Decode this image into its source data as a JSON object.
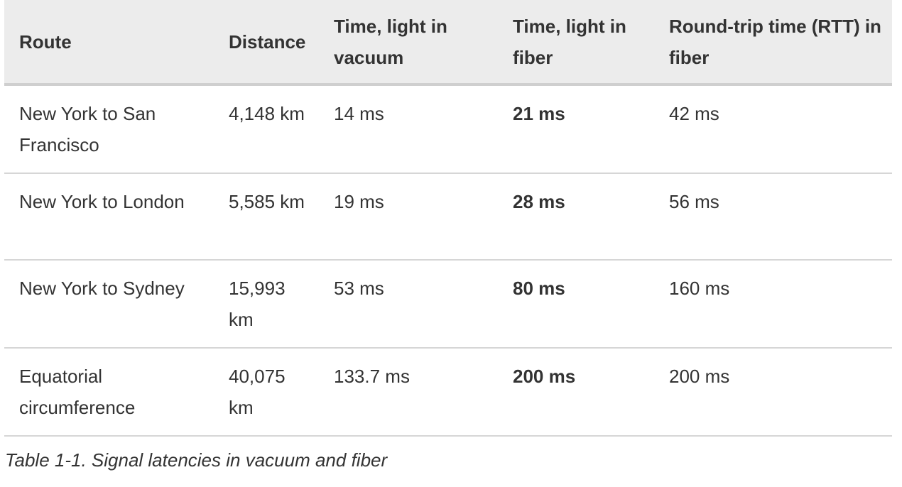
{
  "table": {
    "headers": [
      "Route",
      "Distance",
      "Time, light in vacuum",
      "Time, light in fiber",
      "Round-trip time (RTT) in fiber"
    ],
    "rows": [
      {
        "route": "New York to San Francisco",
        "distance": "4,148 km",
        "vacuum": "14 ms",
        "fiber": "21 ms",
        "rtt": "42 ms"
      },
      {
        "route": "New York to London",
        "distance": "5,585 km",
        "vacuum": "19 ms",
        "fiber": "28 ms",
        "rtt": "56 ms"
      },
      {
        "route": "New York to Sydney",
        "distance": "15,993 km",
        "vacuum": "53 ms",
        "fiber": "80 ms",
        "rtt": "160 ms"
      },
      {
        "route": "Equatorial circumference",
        "distance": "40,075 km",
        "vacuum": "133.7 ms",
        "fiber": "200 ms",
        "rtt": "200 ms"
      }
    ]
  },
  "caption": "Table 1-1. Signal latencies in vacuum and fiber"
}
